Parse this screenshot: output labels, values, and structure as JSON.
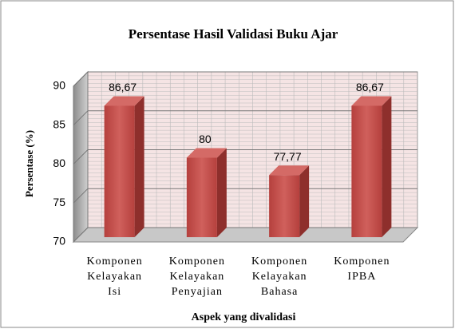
{
  "chart_data": {
    "type": "bar3d",
    "title": "Persentase Hasil Validasi  Buku Ajar",
    "y_label": "Persentase (%)",
    "x_label": "Aspek yang divalidasi",
    "categories": [
      [
        "Komponen",
        "Kelayakan",
        "Isi"
      ],
      [
        "Komponen",
        "Kelayakan",
        "Penyajian"
      ],
      [
        "Komponen",
        "Kelayakan",
        "Bahasa"
      ],
      [
        "Komponen",
        "IPBA"
      ]
    ],
    "values": [
      86.67,
      80,
      77.77,
      86.67
    ],
    "value_labels": [
      "86,67",
      "80",
      "77,77",
      "86,67"
    ],
    "color": "#c0504d",
    "ylim": [
      70,
      90
    ],
    "yticks": [
      70,
      75,
      80,
      85,
      90
    ],
    "grid": true
  }
}
